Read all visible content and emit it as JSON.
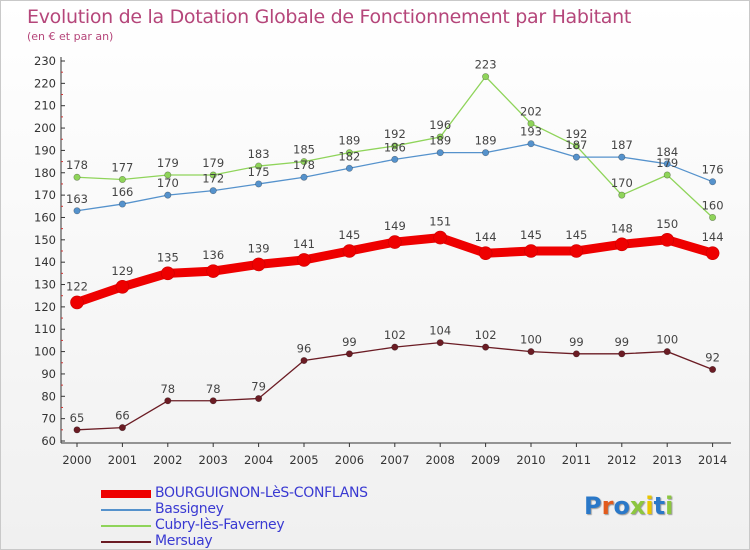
{
  "title": "Evolution de la Dotation Globale de Fonctionnement par Habitant",
  "subtitle": "(en € et par an)",
  "logo": "Proxiti",
  "chart_data": {
    "type": "line",
    "categories": [
      "2000",
      "2001",
      "2002",
      "2003",
      "2004",
      "2005",
      "2006",
      "2007",
      "2008",
      "2009",
      "2010",
      "2011",
      "2012",
      "2013",
      "2014"
    ],
    "ylim": [
      60,
      230
    ],
    "yticks": [
      60,
      70,
      80,
      90,
      100,
      110,
      120,
      130,
      140,
      150,
      160,
      170,
      180,
      190,
      200,
      210,
      220,
      230
    ],
    "grid": false,
    "legend_position": "bottom-left",
    "series": [
      {
        "name": "BOURGUIGNON-LèS-CONFLANS",
        "color": "#ee0000",
        "emphasis": true,
        "values": [
          122,
          129,
          135,
          136,
          139,
          141,
          145,
          149,
          151,
          144,
          145,
          145,
          148,
          150,
          144
        ]
      },
      {
        "name": "Bassigney",
        "color": "#5592cc",
        "emphasis": false,
        "values": [
          163,
          166,
          170,
          172,
          175,
          178,
          182,
          186,
          189,
          189,
          193,
          187,
          187,
          184,
          176
        ]
      },
      {
        "name": "Cubry-lès-Faverney",
        "color": "#8fd45a",
        "emphasis": false,
        "values": [
          178,
          177,
          179,
          179,
          183,
          185,
          189,
          192,
          196,
          223,
          202,
          192,
          170,
          179,
          160
        ]
      },
      {
        "name": "Mersuay",
        "color": "#6b1c24",
        "emphasis": false,
        "values": [
          65,
          66,
          78,
          78,
          79,
          96,
          99,
          102,
          104,
          102,
          100,
          99,
          99,
          100,
          92
        ]
      }
    ]
  }
}
